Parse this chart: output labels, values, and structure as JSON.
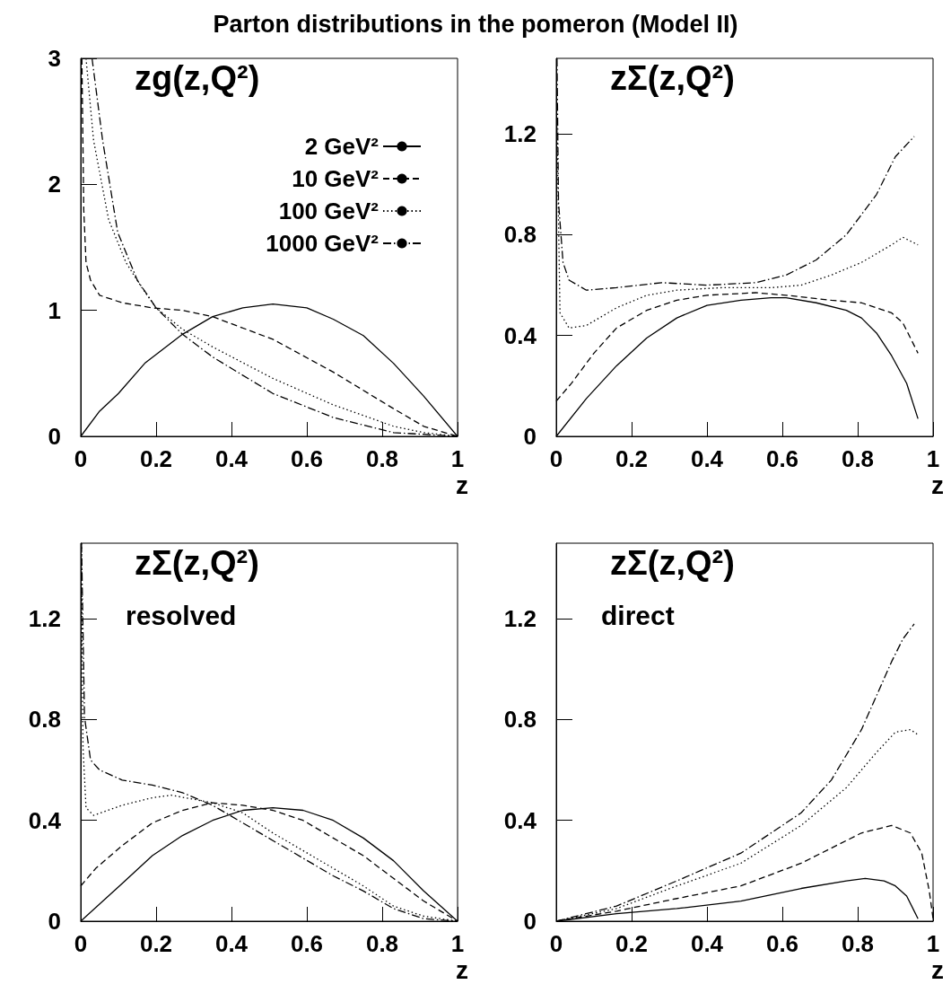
{
  "chart_data": [
    {
      "type": "line",
      "title": "Parton distributions in the pomeron (Model II)",
      "subtitle": "zg(z,Q²)",
      "xlabel": "z",
      "xlim": [
        0,
        1
      ],
      "xticks": [
        0,
        0.2,
        0.4,
        0.6,
        0.8,
        1
      ],
      "ylim": [
        0,
        3
      ],
      "yticks": [
        0,
        1,
        2,
        3
      ],
      "legend": "top right",
      "marker": "none",
      "series": [
        {
          "name": "2 GeV²",
          "color": "#000000",
          "line_style": "solid",
          "x": [
            0,
            0.05,
            0.1,
            0.17,
            0.27,
            0.35,
            0.43,
            0.51,
            0.6,
            0.67,
            0.75,
            0.83,
            0.91,
            1
          ],
          "values": [
            0,
            0.2,
            0.34,
            0.58,
            0.81,
            0.95,
            1.02,
            1.05,
            1.02,
            0.93,
            0.8,
            0.58,
            0.32,
            0
          ]
        },
        {
          "name": "10 GeV²",
          "color": "#000000",
          "line_style": "dashed",
          "x": [
            0.003,
            0.008,
            0.014,
            0.026,
            0.05,
            0.11,
            0.19,
            0.27,
            0.35,
            0.51,
            0.67,
            0.83,
            0.91,
            1
          ],
          "values": [
            3,
            1.8,
            1.38,
            1.24,
            1.12,
            1.06,
            1.02,
            1.0,
            0.95,
            0.77,
            0.51,
            0.22,
            0.08,
            0
          ]
        },
        {
          "name": "100 GeV²",
          "color": "#000000",
          "line_style": "dotted",
          "x": [
            0.014,
            0.034,
            0.074,
            0.12,
            0.16,
            0.2,
            0.27,
            0.35,
            0.51,
            0.67,
            0.83,
            0.91,
            1
          ],
          "values": [
            3,
            2.35,
            1.72,
            1.38,
            1.19,
            1.02,
            0.85,
            0.71,
            0.46,
            0.25,
            0.08,
            0.03,
            0
          ]
        },
        {
          "name": "1000 GeV²",
          "color": "#000000",
          "line_style": "dashdot",
          "x": [
            0.03,
            0.058,
            0.098,
            0.15,
            0.2,
            0.27,
            0.35,
            0.51,
            0.67,
            0.83,
            1
          ],
          "values": [
            3,
            2.35,
            1.62,
            1.24,
            1.02,
            0.81,
            0.63,
            0.34,
            0.15,
            0.03,
            0
          ]
        }
      ]
    },
    {
      "type": "line",
      "subtitle": "zΣ(z,Q²)",
      "xlabel": "z",
      "xlim": [
        0,
        1
      ],
      "xticks": [
        0,
        0.2,
        0.4,
        0.6,
        0.8,
        1
      ],
      "ylim": [
        0,
        1.5
      ],
      "yticks": [
        0,
        0.4,
        0.8,
        1.2
      ],
      "marker": "none",
      "series": [
        {
          "color": "#000000",
          "line_style": "solid",
          "x": [
            0,
            0.08,
            0.16,
            0.24,
            0.32,
            0.4,
            0.49,
            0.57,
            0.61,
            0.69,
            0.77,
            0.81,
            0.85,
            0.89,
            0.93,
            0.96
          ],
          "values": [
            0,
            0.15,
            0.28,
            0.39,
            0.47,
            0.52,
            0.54,
            0.55,
            0.55,
            0.53,
            0.5,
            0.47,
            0.41,
            0.32,
            0.21,
            0.07
          ]
        },
        {
          "color": "#000000",
          "line_style": "dashed",
          "x": [
            0,
            0.04,
            0.1,
            0.16,
            0.24,
            0.32,
            0.4,
            0.53,
            0.61,
            0.73,
            0.81,
            0.89,
            0.92,
            0.94,
            0.96
          ],
          "values": [
            0.14,
            0.21,
            0.33,
            0.43,
            0.5,
            0.54,
            0.56,
            0.57,
            0.56,
            0.54,
            0.53,
            0.49,
            0.45,
            0.39,
            0.33
          ]
        },
        {
          "color": "#000000",
          "line_style": "dotted",
          "x": [
            0.002,
            0.01,
            0.034,
            0.08,
            0.16,
            0.24,
            0.32,
            0.44,
            0.57,
            0.65,
            0.73,
            0.81,
            0.89,
            0.92,
            0.96
          ],
          "values": [
            1.23,
            0.49,
            0.43,
            0.44,
            0.51,
            0.56,
            0.58,
            0.59,
            0.59,
            0.6,
            0.64,
            0.69,
            0.76,
            0.79,
            0.76
          ]
        },
        {
          "color": "#000000",
          "line_style": "dashdot",
          "x": [
            0.002,
            0.006,
            0.018,
            0.034,
            0.08,
            0.16,
            0.28,
            0.4,
            0.53,
            0.61,
            0.69,
            0.77,
            0.85,
            0.9,
            0.95
          ],
          "values": [
            1.5,
            0.93,
            0.69,
            0.62,
            0.58,
            0.59,
            0.61,
            0.6,
            0.61,
            0.64,
            0.7,
            0.8,
            0.96,
            1.11,
            1.19
          ]
        }
      ]
    },
    {
      "type": "line",
      "subtitle": "zΣ(z,Q²)",
      "annotations": [
        "resolved"
      ],
      "xlabel": "z",
      "xlim": [
        0,
        1
      ],
      "xticks": [
        0,
        0.2,
        0.4,
        0.6,
        0.8,
        1
      ],
      "ylim": [
        0,
        1.5
      ],
      "yticks": [
        0,
        0.4,
        0.8,
        1.2
      ],
      "marker": "none",
      "series": [
        {
          "color": "#000000",
          "line_style": "solid",
          "x": [
            0,
            0.11,
            0.19,
            0.27,
            0.35,
            0.43,
            0.51,
            0.59,
            0.67,
            0.75,
            0.83,
            0.91,
            1
          ],
          "values": [
            0,
            0.15,
            0.26,
            0.34,
            0.4,
            0.44,
            0.45,
            0.44,
            0.4,
            0.33,
            0.24,
            0.12,
            0
          ]
        },
        {
          "color": "#000000",
          "line_style": "dashed",
          "x": [
            0,
            0.04,
            0.11,
            0.19,
            0.27,
            0.35,
            0.43,
            0.51,
            0.59,
            0.67,
            0.75,
            0.83,
            0.91,
            1
          ],
          "values": [
            0.14,
            0.21,
            0.3,
            0.39,
            0.44,
            0.47,
            0.46,
            0.44,
            0.4,
            0.33,
            0.26,
            0.17,
            0.08,
            0
          ]
        },
        {
          "color": "#000000",
          "line_style": "dotted",
          "x": [
            0.002,
            0.006,
            0.014,
            0.034,
            0.11,
            0.19,
            0.24,
            0.35,
            0.43,
            0.51,
            0.59,
            0.67,
            0.75,
            0.83,
            0.91,
            1
          ],
          "values": [
            1.5,
            0.69,
            0.45,
            0.42,
            0.46,
            0.49,
            0.5,
            0.47,
            0.43,
            0.35,
            0.28,
            0.21,
            0.14,
            0.06,
            0.02,
            0
          ]
        },
        {
          "color": "#000000",
          "line_style": "dashdot",
          "x": [
            0.002,
            0.01,
            0.026,
            0.05,
            0.11,
            0.19,
            0.27,
            0.35,
            0.43,
            0.51,
            0.59,
            0.67,
            0.75,
            0.83,
            0.91,
            1
          ],
          "values": [
            1.5,
            0.81,
            0.64,
            0.6,
            0.56,
            0.54,
            0.51,
            0.46,
            0.39,
            0.32,
            0.25,
            0.18,
            0.12,
            0.05,
            0.01,
            0
          ]
        }
      ]
    },
    {
      "type": "line",
      "subtitle": "zΣ(z,Q²)",
      "annotations": [
        "direct"
      ],
      "xlabel": "z",
      "xlim": [
        0,
        1
      ],
      "xticks": [
        0,
        0.2,
        0.4,
        0.6,
        0.8,
        1
      ],
      "ylim": [
        0,
        1.5
      ],
      "yticks": [
        0,
        0.4,
        0.8,
        1.2
      ],
      "marker": "none",
      "series": [
        {
          "color": "#000000",
          "line_style": "solid",
          "x": [
            0,
            0.16,
            0.32,
            0.49,
            0.65,
            0.77,
            0.82,
            0.87,
            0.9,
            0.93,
            0.96
          ],
          "values": [
            0,
            0.03,
            0.05,
            0.08,
            0.13,
            0.16,
            0.17,
            0.16,
            0.14,
            0.1,
            0.01
          ]
        },
        {
          "color": "#000000",
          "line_style": "dashed",
          "x": [
            0,
            0.16,
            0.32,
            0.49,
            0.65,
            0.81,
            0.89,
            0.94,
            0.97,
            0.99,
            1
          ],
          "values": [
            0,
            0.04,
            0.09,
            0.14,
            0.23,
            0.35,
            0.38,
            0.35,
            0.27,
            0.12,
            0.01
          ]
        },
        {
          "color": "#000000",
          "line_style": "dotted",
          "x": [
            0,
            0.16,
            0.32,
            0.49,
            0.65,
            0.77,
            0.85,
            0.9,
            0.94,
            0.96
          ],
          "values": [
            0,
            0.05,
            0.14,
            0.23,
            0.38,
            0.53,
            0.67,
            0.75,
            0.76,
            0.74
          ]
        },
        {
          "color": "#000000",
          "line_style": "dashdot",
          "x": [
            0,
            0.16,
            0.32,
            0.49,
            0.65,
            0.73,
            0.81,
            0.89,
            0.92,
            0.95
          ],
          "values": [
            0,
            0.06,
            0.16,
            0.27,
            0.43,
            0.56,
            0.76,
            1.03,
            1.12,
            1.18
          ]
        }
      ]
    }
  ]
}
